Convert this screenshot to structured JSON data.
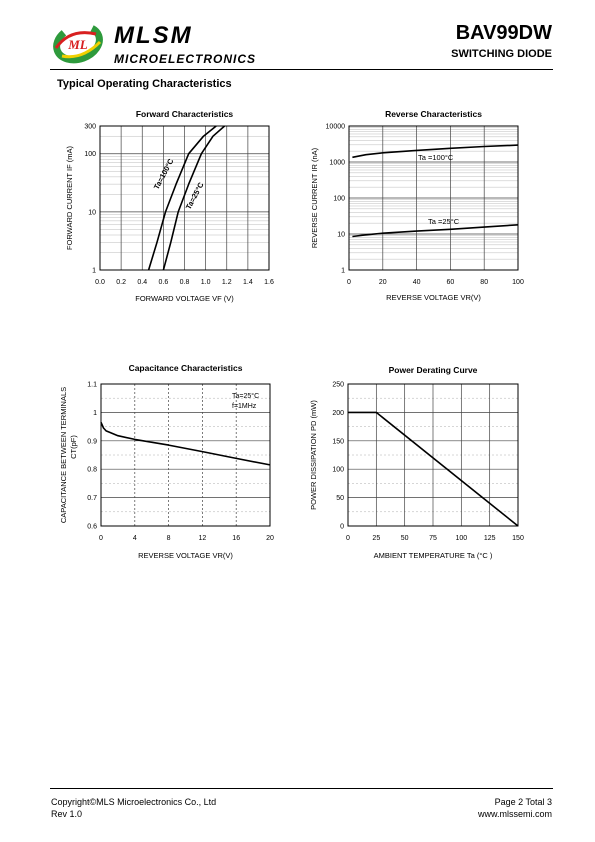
{
  "header": {
    "brand": "MLSM",
    "brand_sub": "MICROELECTRONICS",
    "logo_letters": "ML",
    "part_number": "BAV99DW",
    "part_description": "SWITCHING DIODE"
  },
  "section_title": "Typical Operating Characteristics",
  "footer": {
    "copyright": "Copyright©MLS Microelectronics Co., Ltd",
    "revision": "Rev 1.0",
    "page": "Page 2 Total 3",
    "website": "www.mlssemi.com"
  },
  "colors": {
    "logo_green": "#2e9a3c",
    "logo_red": "#d82020",
    "logo_yellow": "#f0d000",
    "curve": "#000000",
    "grid": "#555555"
  },
  "chart_data": [
    {
      "type": "line",
      "title": "Forward  Characteristics",
      "xlabel": "FORWARD VOLTAGE  VF (V)",
      "ylabel": "FORWARD CURRENT  IF (mA)",
      "xscale": "linear",
      "yscale": "log",
      "xlim": [
        0.0,
        1.6
      ],
      "ylim": [
        1,
        300
      ],
      "x_ticks": [
        "0.0",
        "0.2",
        "0.4",
        "0.6",
        "0.8",
        "1.0",
        "1.2",
        "1.4",
        "1.6"
      ],
      "y_ticks": [
        "1",
        "10",
        "100",
        "300"
      ],
      "grid": true,
      "series": [
        {
          "name": "Ta=100°C",
          "x": [
            0.46,
            0.54,
            0.62,
            0.72,
            0.84,
            0.98,
            1.1
          ],
          "y": [
            1,
            3,
            10,
            30,
            100,
            200,
            300
          ]
        },
        {
          "name": "Ta=25°C",
          "x": [
            0.6,
            0.67,
            0.74,
            0.84,
            0.96,
            1.07,
            1.18
          ],
          "y": [
            1,
            3,
            10,
            30,
            100,
            200,
            300
          ]
        }
      ]
    },
    {
      "type": "line",
      "title": "Reverse  Characteristics",
      "xlabel": "REVERSE VOLTAGE    VR(V)",
      "ylabel": "REVERSE CURRENT  IR  (nA)",
      "xscale": "linear",
      "yscale": "log",
      "xlim": [
        0,
        100
      ],
      "ylim": [
        1,
        10000
      ],
      "x_ticks": [
        "0",
        "20",
        "40",
        "60",
        "80",
        "100"
      ],
      "y_ticks": [
        "1",
        "10",
        "100",
        "1000",
        "10000"
      ],
      "grid": true,
      "series": [
        {
          "name": "Ta =100°C",
          "x": [
            2,
            10,
            20,
            40,
            60,
            80,
            100
          ],
          "y": [
            1350,
            1600,
            1800,
            2100,
            2400,
            2700,
            2950
          ]
        },
        {
          "name": "Ta =25°C",
          "x": [
            2,
            10,
            20,
            40,
            60,
            80,
            100
          ],
          "y": [
            8.5,
            9.5,
            10.5,
            12,
            13.5,
            15.5,
            18
          ]
        }
      ]
    },
    {
      "type": "line",
      "title": "Capacitance Characteristics",
      "xlabel": "REVERSE VOLTAGE   VR(V)",
      "ylabel": "CAPACITANCE BETWEEN TERMINALS",
      "ylabel2": "CT(pF)",
      "annotation": [
        "Ta=25°C",
        "f=1MHz"
      ],
      "xscale": "linear",
      "yscale": "linear",
      "xlim": [
        0,
        20
      ],
      "ylim": [
        0.6,
        1.1
      ],
      "x_ticks": [
        "0",
        "4",
        "8",
        "12",
        "16",
        "20"
      ],
      "y_ticks": [
        "0.6",
        "0.7",
        "0.8",
        "0.9",
        "1",
        "1.1"
      ],
      "grid": true,
      "series": [
        {
          "name": "",
          "x": [
            0,
            0.3,
            0.6,
            1,
            2,
            4,
            8,
            12,
            16,
            20
          ],
          "y": [
            0.965,
            0.945,
            0.935,
            0.93,
            0.918,
            0.905,
            0.885,
            0.862,
            0.838,
            0.815
          ]
        }
      ]
    },
    {
      "type": "line",
      "title": "Power Derating Curve",
      "xlabel": "AMBIENT TEMPERATURE     Ta  (°C )",
      "ylabel": "POWER  DISSIPATION  PD  (mW)",
      "xscale": "linear",
      "yscale": "linear",
      "xlim": [
        0,
        150
      ],
      "ylim": [
        0,
        250
      ],
      "x_ticks": [
        "0",
        "25",
        "50",
        "75",
        "100",
        "125",
        "150"
      ],
      "y_ticks": [
        "0",
        "50",
        "100",
        "150",
        "200",
        "250"
      ],
      "grid": true,
      "series": [
        {
          "name": "",
          "x": [
            0,
            25,
            150
          ],
          "y": [
            200,
            200,
            0
          ]
        }
      ]
    }
  ]
}
